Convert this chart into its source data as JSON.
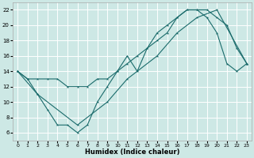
{
  "bg_color": "#cde8e5",
  "grid_color": "#ffffff",
  "line_color": "#1a6b6b",
  "line1_x": [
    0,
    1,
    2,
    3,
    4,
    5,
    6,
    7,
    8,
    9,
    10,
    11,
    12,
    13,
    14,
    15,
    16,
    17,
    18,
    19,
    20,
    21,
    22,
    23
  ],
  "line1_y": [
    14,
    13,
    11,
    9,
    7,
    7,
    6,
    7,
    10,
    12,
    14,
    16,
    14,
    17,
    19,
    20,
    21,
    22,
    22,
    21,
    19,
    15,
    14,
    15
  ],
  "line2_x": [
    0,
    1,
    2,
    3,
    4,
    5,
    6,
    7,
    8,
    9,
    10,
    11,
    12,
    13,
    14,
    15,
    16,
    17,
    18,
    19,
    20,
    21,
    22,
    23
  ],
  "line2_y": [
    14,
    13,
    13,
    13,
    13,
    12,
    12,
    12,
    13,
    13,
    14,
    15,
    16,
    17,
    18,
    19,
    21,
    22,
    22,
    22,
    21,
    20,
    17,
    15
  ],
  "line3_x": [
    0,
    2,
    6,
    9,
    11,
    14,
    16,
    18,
    20,
    23
  ],
  "line3_y": [
    14,
    11,
    7,
    10,
    13,
    16,
    19,
    21,
    22,
    15
  ],
  "xlabel": "Humidex (Indice chaleur)",
  "xlim": [
    -0.5,
    23.5
  ],
  "ylim": [
    5,
    23
  ],
  "yticks": [
    6,
    8,
    10,
    12,
    14,
    16,
    18,
    20,
    22
  ],
  "xticks": [
    0,
    1,
    2,
    3,
    4,
    5,
    6,
    7,
    8,
    9,
    10,
    11,
    12,
    13,
    14,
    15,
    16,
    17,
    18,
    19,
    20,
    21,
    22,
    23
  ]
}
